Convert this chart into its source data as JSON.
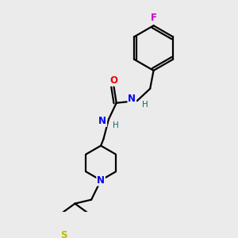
{
  "background_color": "#ebebeb",
  "atom_colors": {
    "C": "#000000",
    "N": "#0000ee",
    "O": "#ee0000",
    "S": "#bbbb00",
    "F": "#cc00cc",
    "H": "#007070"
  },
  "bond_color": "#000000",
  "bond_width": 1.6,
  "font_size_atom": 8.5,
  "font_size_H": 7.5
}
